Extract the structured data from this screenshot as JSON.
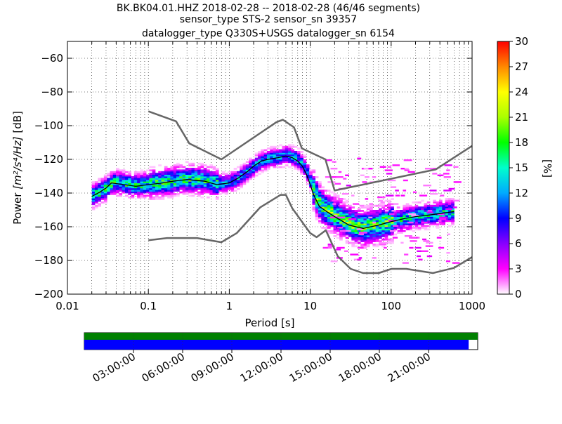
{
  "chart_data": {
    "type": "heatmap",
    "title_lines": [
      "BK.BK04.01.HHZ   2018-02-28 -- 2018-02-28  (46/46 segments)",
      "sensor_type STS-2 sensor_sn 39357",
      "datalogger_type Q330S+USGS datalogger_sn 6154"
    ],
    "xlabel": "Period [s]",
    "ylabel_prefix": "Power ",
    "ylabel_math": "[m²/s⁴/Hz]",
    "ylabel_suffix": " [dB]",
    "x_scale": "log",
    "xlim": [
      0.01,
      1000
    ],
    "ylim": [
      -200,
      -50
    ],
    "x_ticks": [
      {
        "value": 0.01,
        "label": "0.01"
      },
      {
        "value": 0.1,
        "label": "0.1"
      },
      {
        "value": 1,
        "label": "1"
      },
      {
        "value": 10,
        "label": "10"
      },
      {
        "value": 100,
        "label": "100"
      },
      {
        "value": 1000,
        "label": "1000"
      }
    ],
    "y_ticks": [
      -60,
      -80,
      -100,
      -120,
      -140,
      -160,
      -180,
      -200
    ],
    "y_tick_labels": [
      "−60",
      "−80",
      "−100",
      "−120",
      "−140",
      "−160",
      "−180",
      "−200"
    ],
    "grid": true,
    "colorbar": {
      "label": "[%]",
      "range": [
        0,
        30
      ],
      "ticks": [
        "0",
        "3",
        "6",
        "9",
        "12",
        "15",
        "18",
        "21",
        "24",
        "27",
        "30"
      ],
      "colors": [
        "#ffffff",
        "#ff00ff",
        "#8800ff",
        "#0000ff",
        "#00aaff",
        "#00ffcc",
        "#00ff00",
        "#aaff00",
        "#ffff00",
        "#ff8800",
        "#ff0000"
      ]
    },
    "nlnm": {
      "name": "NLNM",
      "color": "#666666",
      "points": [
        [
          0.1,
          -168
        ],
        [
          0.17,
          -166.7
        ],
        [
          0.4,
          -166.7
        ],
        [
          0.8,
          -169.2
        ],
        [
          1.24,
          -163.7
        ],
        [
          2.4,
          -148.6
        ],
        [
          4.3,
          -141.1
        ],
        [
          5.0,
          -141.1
        ],
        [
          6.0,
          -149
        ],
        [
          10,
          -163.8
        ],
        [
          12,
          -166.2
        ],
        [
          15.6,
          -162.1
        ],
        [
          21.9,
          -177.5
        ],
        [
          31.6,
          -185
        ],
        [
          45,
          -187.5
        ],
        [
          70,
          -187.5
        ],
        [
          101,
          -185
        ],
        [
          154,
          -185
        ],
        [
          328,
          -187.5
        ],
        [
          600,
          -184.4
        ],
        [
          1000,
          -178
        ]
      ]
    },
    "nhnm": {
      "name": "NHNM",
      "color": "#666666",
      "points": [
        [
          0.1,
          -91.5
        ],
        [
          0.22,
          -97.4
        ],
        [
          0.32,
          -110.5
        ],
        [
          0.8,
          -120
        ],
        [
          3.8,
          -98
        ],
        [
          4.6,
          -96.5
        ],
        [
          6.3,
          -101
        ],
        [
          7.9,
          -113.5
        ],
        [
          15.4,
          -120
        ],
        [
          20,
          -138.5
        ],
        [
          354.8,
          -126
        ],
        [
          1000,
          -112
        ]
      ]
    },
    "mode_curve": {
      "name": "mode",
      "color": "#000000",
      "points": [
        [
          0.02,
          -142
        ],
        [
          0.025,
          -139.5
        ],
        [
          0.03,
          -137
        ],
        [
          0.035,
          -134
        ],
        [
          0.05,
          -135
        ],
        [
          0.07,
          -136
        ],
        [
          0.1,
          -135
        ],
        [
          0.15,
          -134
        ],
        [
          0.2,
          -133
        ],
        [
          0.3,
          -132
        ],
        [
          0.5,
          -133
        ],
        [
          0.7,
          -135
        ],
        [
          1.0,
          -134
        ],
        [
          1.3,
          -131
        ],
        [
          1.7,
          -127
        ],
        [
          2.0,
          -124
        ],
        [
          2.5,
          -121
        ],
        [
          3.0,
          -120
        ],
        [
          4.0,
          -119
        ],
        [
          5.0,
          -118
        ],
        [
          6.0,
          -119
        ],
        [
          7.0,
          -121
        ],
        [
          8.0,
          -124
        ],
        [
          9.0,
          -129
        ],
        [
          10,
          -135
        ],
        [
          11,
          -141
        ],
        [
          13,
          -148
        ],
        [
          16,
          -151
        ],
        [
          20,
          -154
        ],
        [
          30,
          -159
        ],
        [
          45,
          -161
        ],
        [
          70,
          -159
        ],
        [
          100,
          -157
        ],
        [
          150,
          -155
        ],
        [
          200,
          -154
        ],
        [
          300,
          -153
        ],
        [
          600,
          -151
        ]
      ]
    },
    "density_bands": [
      {
        "x_from": 0.019,
        "x_to": 0.1,
        "y_center_db": -135,
        "spread_db": 6,
        "pct": 9
      },
      {
        "x_from": 0.1,
        "x_to": 0.7,
        "y_center_db": -133,
        "spread_db": 7,
        "pct": 8
      },
      {
        "x_from": 0.7,
        "x_to": 10,
        "y_center_db": -124,
        "spread_db": 5,
        "pct": 14
      },
      {
        "x_from": 10,
        "x_to": 100,
        "y_center_db": -158,
        "spread_db": 9,
        "pct": 6
      },
      {
        "x_from": 100,
        "x_to": 650,
        "y_center_db": -154,
        "spread_db": 6,
        "pct": 10
      }
    ],
    "timeline": {
      "ticks": [
        "03:00:00",
        "06:00:00",
        "09:00:00",
        "12:00:00",
        "15:00:00",
        "18:00:00",
        "21:00:00"
      ],
      "top_color": "#008000",
      "bottom_color": "#0000ff",
      "coverage_fraction": 0.977
    }
  }
}
